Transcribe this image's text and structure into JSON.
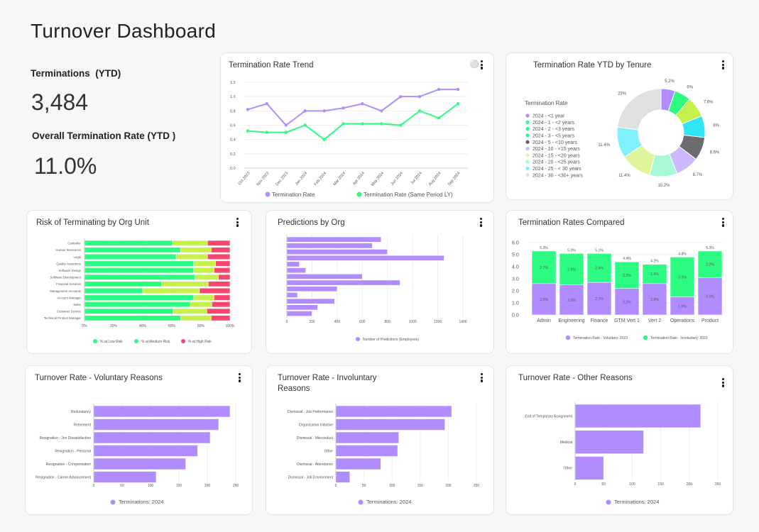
{
  "page": {
    "title": "Turnover Dashboard"
  },
  "kpis": {
    "terminations_label": "Terminations  (YTD)",
    "terminations_value": "3,484",
    "rate_label": "Overall Termination Rate (YTD )",
    "rate_value": "11.0%"
  },
  "icons": {
    "menu": "kebab-vertical-icon",
    "insight": "lightbulb-icon"
  },
  "chart_data": [
    {
      "type": "line",
      "title": "Termination Rate Trend",
      "categories": [
        "Oct 2023",
        "Nov 2023",
        "Dec 2023",
        "Jan 2024",
        "Feb 2024",
        "Mar 2024",
        "Apr 2024",
        "May 2024",
        "Jun 2024",
        "Jul 2024",
        "Aug 2024",
        "Sep 2024"
      ],
      "ylim": [
        0,
        1.2
      ],
      "yticks": [
        "0.0",
        "0.2",
        "0.4",
        "0.6",
        "0.8",
        "1.0",
        "1.2"
      ],
      "grid": true,
      "legend": "bottom",
      "series": [
        {
          "name": "Termination Rate",
          "color": "#b18cff",
          "values": [
            0.82,
            0.9,
            0.6,
            0.8,
            0.8,
            0.84,
            0.9,
            0.8,
            1.0,
            1.0,
            1.1,
            1.1
          ]
        },
        {
          "name": "Termination Rate (Same Period LY)",
          "color": "#2dfc82",
          "values": [
            0.52,
            0.5,
            0.5,
            0.6,
            0.4,
            0.62,
            0.62,
            0.62,
            0.6,
            0.8,
            0.7,
            0.9
          ]
        }
      ]
    },
    {
      "type": "pie",
      "title": "Termination Rate YTD by Tenure",
      "legend_title": "Termination Rate",
      "legend": "left",
      "labels": [
        "2024 - <1 year",
        "2024 - 1 - <2 years",
        "2024 - 2 - <3 years",
        "2024 - 3 - <5 years",
        "2024 - 5 - <10 years",
        "2024  - 10 - <15 years",
        "2024 - 15 - <20 years",
        "2024 - 20 - <25 years",
        "2024 - 25 - < 30 years",
        "2024 - 30 - <30+ years"
      ],
      "legend_colors": [
        "#b18cff",
        "#2dfc82",
        "#2dfc82",
        "#2dfc82",
        "#5f5f63",
        "#cdb8ff",
        "#e2f79c",
        "#a6f9d4",
        "#80f0fb",
        "#e0e0e0"
      ],
      "values": [
        5.2,
        6,
        7.6,
        8,
        8.6,
        8.7,
        10.2,
        11.4,
        11.4,
        23
      ],
      "value_labels": [
        "5.2%",
        "6%",
        "7.6%",
        "8%",
        "8.6%",
        "8.7%",
        "10.2%",
        "11.4%",
        "11.4%",
        "23%"
      ],
      "colors": [
        "#b18cff",
        "#2dfc82",
        "#c5f24a",
        "#2ee6f8",
        "#6b6b70",
        "#cdb8ff",
        "#a6f9d4",
        "#dff59a",
        "#80f0fb",
        "#e0e0e0"
      ]
    },
    {
      "type": "bar",
      "orientation": "horizontal-stacked-100",
      "title": "Risk of Terminating by Org Unit",
      "categories": [
        "Controller",
        "Human Resources",
        "Legal",
        "Quality Assurance",
        "Software Design",
        "Software Development",
        "Financial Services",
        "Management Accounts",
        "Account Manager",
        "Sales",
        "Customer Service",
        "Technical Product Manager"
      ],
      "xticks": [
        "0%",
        "20%",
        "40%",
        "60%",
        "80%",
        "100%"
      ],
      "xlim": [
        0,
        100
      ],
      "legend": "bottom",
      "series": [
        {
          "name": "% at Low Risk",
          "color": "#2dfc82",
          "legend_color": "#2dfc82",
          "values": [
            60.5,
            66,
            63,
            75,
            75,
            76,
            53,
            40,
            75,
            72.5,
            61,
            66
          ]
        },
        {
          "name": "% at Medium Risk",
          "color": "#c5f24a",
          "legend_color": "#2dfc82",
          "values": [
            24,
            21,
            21.5,
            15,
            14,
            16,
            32,
            39,
            14,
            15,
            23,
            21
          ]
        },
        {
          "name": "% at High Risk",
          "color": "#f7476e",
          "legend_color": "#f7476e",
          "values": [
            15.5,
            13,
            15.5,
            10,
            11,
            8,
            15,
            21,
            11,
            12.5,
            16,
            13
          ]
        }
      ]
    },
    {
      "type": "bar",
      "orientation": "horizontal",
      "title": "Predictions by Org",
      "xlim": [
        0,
        1400
      ],
      "xticks": [
        "0",
        "200",
        "400",
        "600",
        "800",
        "1000",
        "1200",
        "1400"
      ],
      "legend": "bottom",
      "series": [
        {
          "name": "Number of Predictions (Employees)",
          "color": "#b18cff",
          "values": [
            750,
            680,
            800,
            1250,
            100,
            150,
            600,
            900,
            400,
            85,
            380,
            245,
            200
          ]
        }
      ]
    },
    {
      "type": "bar",
      "orientation": "vertical-stacked",
      "title": "Termination Rates Compared",
      "categories": [
        "Admin",
        "Engineering",
        "Finance",
        "GTM Vert 1",
        "Vert 2",
        "Operations",
        "Product"
      ],
      "ylim": [
        0,
        6
      ],
      "yticks": [
        "0.0",
        "1.0",
        "2.0",
        "3.0",
        "4.0",
        "5.0",
        "6.0"
      ],
      "totals": [
        "5.3%",
        "5.0%",
        "5.1%",
        "4.4%",
        "4.2%",
        "4.8%",
        "5.3%"
      ],
      "legend": "bottom",
      "series": [
        {
          "name": "Termination Rate - Voluntary: 2023",
          "color": "#b18cff",
          "values": [
            2.6,
            2.5,
            2.7,
            2.2,
            2.6,
            1.5,
            3.1
          ],
          "labels": [
            "2.6%",
            "2.5%",
            "2.7%",
            "2.2%",
            "2.6%",
            "1.5%",
            "3.1%"
          ]
        },
        {
          "name": "Termination Rate - Involuntary: 2023",
          "color": "#2dfc82",
          "values": [
            2.7,
            2.6,
            2.4,
            2.2,
            1.6,
            3.3,
            2.2
          ],
          "labels": [
            "2.7%",
            "2.6%",
            "2.4%",
            "2.2%",
            "1.6%",
            "3.3%",
            "2.2%"
          ]
        }
      ]
    },
    {
      "type": "bar",
      "orientation": "horizontal",
      "title": "Turnover Rate - Voluntary Reasons",
      "categories": [
        "Redundancy",
        "Retirement",
        "Resignation - Jon Dissatisfaction",
        "Resignation - Personal",
        "Resignation - Compensation",
        "Resignation - Career Advancement"
      ],
      "xlim": [
        0,
        250
      ],
      "xticks": [
        "0",
        "50",
        "100",
        "150",
        "200",
        "250"
      ],
      "legend": "bottom",
      "series": [
        {
          "name": "Terminations: 2024",
          "color": "#b18cff",
          "values": [
            240,
            220,
            205,
            183,
            162,
            110
          ]
        }
      ]
    },
    {
      "type": "bar",
      "orientation": "horizontal",
      "title": "Turnover Rate - Involuntary Reasons",
      "categories": [
        "Dismissal - Job Performance",
        "Organization Initiative",
        "Dismissal - Misconduct",
        "Other",
        "Dismissal - Attendance",
        "Dismissal - Job Environment"
      ],
      "xlim": [
        0,
        250
      ],
      "xticks": [
        "0",
        "50",
        "100",
        "150",
        "200",
        "250"
      ],
      "legend": "bottom",
      "series": [
        {
          "name": "Terminations: 2024",
          "color": "#b18cff",
          "values": [
            206,
            194,
            112,
            110,
            80,
            25
          ]
        }
      ]
    },
    {
      "type": "bar",
      "orientation": "horizontal",
      "title": "Turnover Rate - Other Reasons",
      "categories": [
        "End of Temporary Assignment",
        "Medical",
        "Other"
      ],
      "xlim": [
        0,
        250
      ],
      "xticks": [
        "0",
        "50",
        "100",
        "150",
        "200",
        "250"
      ],
      "legend": "bottom",
      "series": [
        {
          "name": "Terminations: 2024",
          "color": "#b18cff",
          "values": [
            220,
            120,
            50
          ]
        }
      ]
    }
  ]
}
